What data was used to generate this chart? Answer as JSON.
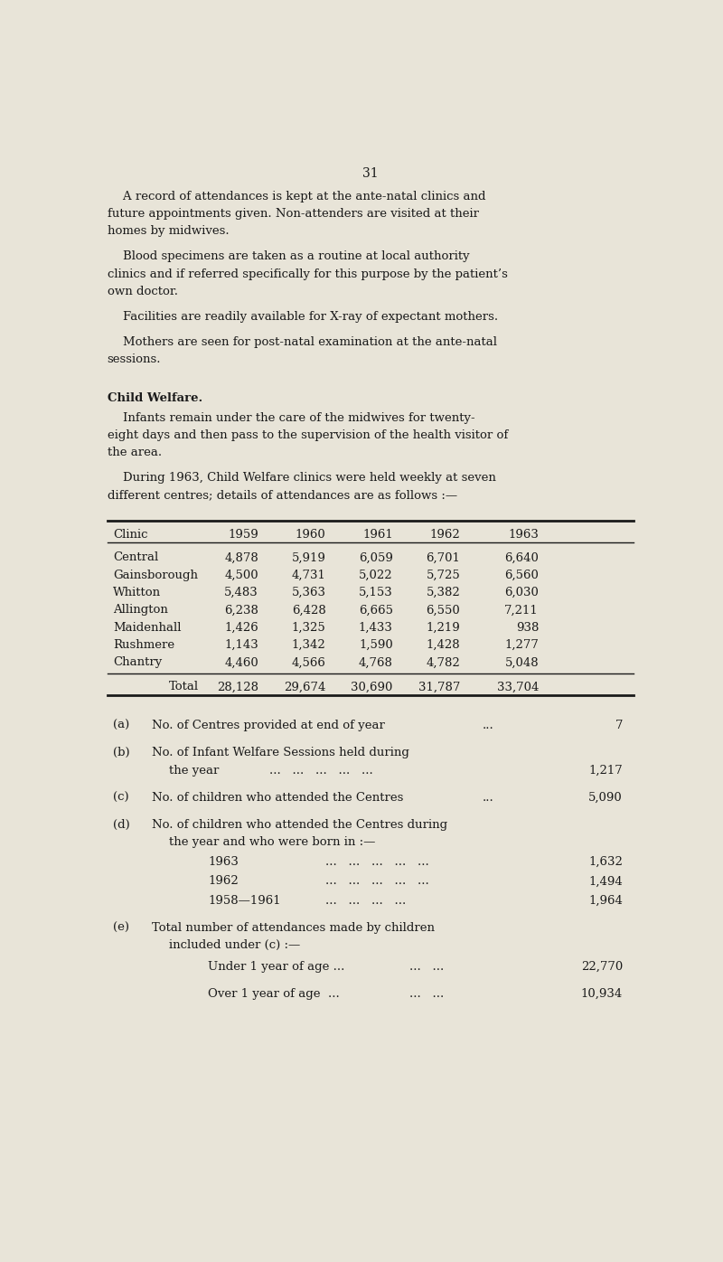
{
  "page_number": "31",
  "bg_color": "#e8e4d8",
  "text_color": "#1a1a1a",
  "section_title": "Child Welfare.",
  "table_headers": [
    "Clinic",
    "1959",
    "1960",
    "1961",
    "1962",
    "1963"
  ],
  "table_rows": [
    [
      "Central",
      "4,878",
      "5,919",
      "6,059",
      "6,701",
      "6,640"
    ],
    [
      "Gainsborough",
      "4,500",
      "4,731",
      "5,022",
      "5,725",
      "6,560"
    ],
    [
      "Whitton",
      "5,483",
      "5,363",
      "5,153",
      "5,382",
      "6,030"
    ],
    [
      "Allington",
      "6,238",
      "6,428",
      "6,665",
      "6,550",
      "7,211"
    ],
    [
      "Maidenhall",
      "1,426",
      "1,325",
      "1,433",
      "1,219",
      "938"
    ],
    [
      "Rushmere",
      "1,143",
      "1,342",
      "1,590",
      "1,428",
      "1,277"
    ],
    [
      "Chantry",
      "4,460",
      "4,566",
      "4,768",
      "4,782",
      "5,048"
    ]
  ],
  "table_total": [
    "Total",
    "28,128",
    "29,674",
    "30,690",
    "31,787",
    "33,704"
  ],
  "note_d_items": [
    {
      "year": "1963",
      "dots": "...   ...   ...   ...   ...",
      "value": "1,632"
    },
    {
      "year": "1962",
      "dots": "...   ...   ...   ...   ...",
      "value": "1,494"
    },
    {
      "year": "1958—1961",
      "dots": "...   ...   ...   ...",
      "value": "1,964"
    }
  ]
}
